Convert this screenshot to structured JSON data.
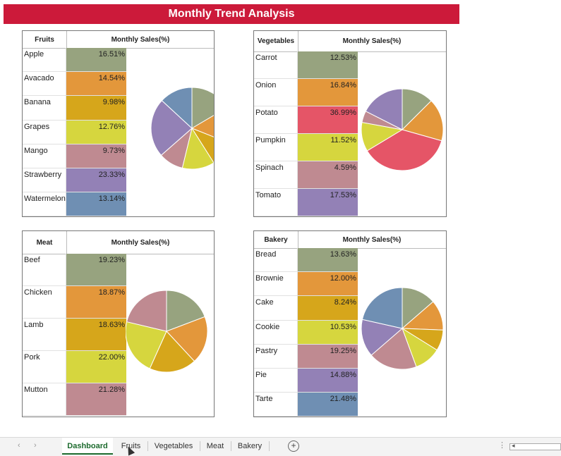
{
  "title": "Monthly Trend Analysis",
  "panels": [
    {
      "key": "fruits",
      "header": "Fruits",
      "col_header": "Monthly Sales(%)",
      "items": [
        {
          "name": "Apple",
          "value": "16.51%",
          "pct": 16.51,
          "color": "#97a37f"
        },
        {
          "name": "Avacado",
          "value": "14.54%",
          "pct": 14.54,
          "color": "#e3973b"
        },
        {
          "name": "Banana",
          "value": "9.98%",
          "pct": 9.98,
          "color": "#d6a61b"
        },
        {
          "name": "Grapes",
          "value": "12.76%",
          "pct": 12.76,
          "color": "#d6d63e"
        },
        {
          "name": "Mango",
          "value": "9.73%",
          "pct": 9.73,
          "color": "#bf8a91"
        },
        {
          "name": "Strawberry",
          "value": "23.33%",
          "pct": 23.33,
          "color": "#9381b6"
        },
        {
          "name": "Watermelon",
          "value": "13.14%",
          "pct": 13.14,
          "color": "#6f8fb3"
        }
      ]
    },
    {
      "key": "vegetables",
      "header": "Vegetables",
      "col_header": "Monthly Sales(%)",
      "items": [
        {
          "name": "Carrot",
          "value": "12.53%",
          "pct": 12.53,
          "color": "#97a37f"
        },
        {
          "name": "Onion",
          "value": "16.84%",
          "pct": 16.84,
          "color": "#e3973b"
        },
        {
          "name": "Potato",
          "value": "36.99%",
          "pct": 36.99,
          "color": "#e55567"
        },
        {
          "name": "Pumpkin",
          "value": "11.52%",
          "pct": 11.52,
          "color": "#d6d63e"
        },
        {
          "name": "Spinach",
          "value": "4.59%",
          "pct": 4.59,
          "color": "#bf8a91"
        },
        {
          "name": "Tomato",
          "value": "17.53%",
          "pct": 17.53,
          "color": "#9381b6"
        }
      ]
    },
    {
      "key": "meat",
      "header": "Meat",
      "col_header": "Monthly Sales(%)",
      "items": [
        {
          "name": "Beef",
          "value": "19.23%",
          "pct": 19.23,
          "color": "#97a37f"
        },
        {
          "name": "Chicken",
          "value": "18.87%",
          "pct": 18.87,
          "color": "#e3973b"
        },
        {
          "name": "Lamb",
          "value": "18.63%",
          "pct": 18.63,
          "color": "#d6a61b"
        },
        {
          "name": "Pork",
          "value": "22.00%",
          "pct": 22.0,
          "color": "#d6d63e"
        },
        {
          "name": "Mutton",
          "value": "21.28%",
          "pct": 21.28,
          "color": "#bf8a91"
        }
      ]
    },
    {
      "key": "bakery",
      "header": "Bakery",
      "col_header": "Monthly Sales(%)",
      "items": [
        {
          "name": "Bread",
          "value": "13.63%",
          "pct": 13.63,
          "color": "#97a37f"
        },
        {
          "name": "Brownie",
          "value": "12.00%",
          "pct": 12.0,
          "color": "#e3973b"
        },
        {
          "name": "Cake",
          "value": "8.24%",
          "pct": 8.24,
          "color": "#d6a61b"
        },
        {
          "name": "Cookie",
          "value": "10.53%",
          "pct": 10.53,
          "color": "#d6d63e"
        },
        {
          "name": "Pastry",
          "value": "19.25%",
          "pct": 19.25,
          "color": "#bf8a91"
        },
        {
          "name": "Pie",
          "value": "14.88%",
          "pct": 14.88,
          "color": "#9381b6"
        },
        {
          "name": "Tarte",
          "value": "21.48%",
          "pct": 21.48,
          "color": "#6f8fb3"
        }
      ]
    }
  ],
  "tabs": [
    "Dashboard",
    "Fruits",
    "Vegetables",
    "Meat",
    "Bakery"
  ],
  "active_tab": "Dashboard",
  "icons": {
    "nav_prev": "chevron-left-icon",
    "nav_next": "chevron-right-icon",
    "add_sheet": "plus-circle-icon",
    "options": "more-options-icon"
  }
}
